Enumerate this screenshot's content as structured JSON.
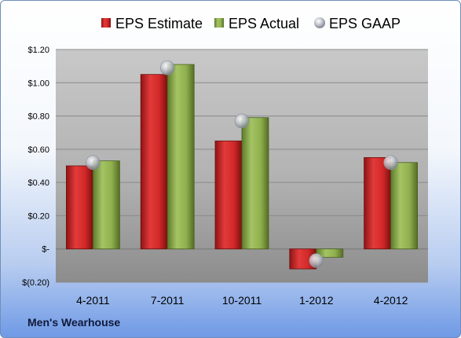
{
  "company": "Men's Wearhouse",
  "colors": {
    "estimate": "#d42a2a",
    "actual": "#8fb04e",
    "gaap": "#b7bcc6"
  },
  "chart_data": {
    "type": "bar",
    "title": "",
    "xlabel": "",
    "ylabel": "",
    "categories": [
      "4-2011",
      "7-2011",
      "10-2011",
      "1-2012",
      "4-2012"
    ],
    "series": [
      {
        "name": "EPS Estimate",
        "kind": "bar",
        "values": [
          0.5,
          1.05,
          0.65,
          -0.12,
          0.55
        ]
      },
      {
        "name": "EPS Actual",
        "kind": "bar",
        "values": [
          0.53,
          1.11,
          0.79,
          -0.05,
          0.52
        ]
      },
      {
        "name": "EPS GAAP",
        "kind": "point",
        "values": [
          0.52,
          1.09,
          0.77,
          -0.07,
          0.52
        ]
      }
    ],
    "ylim": [
      -0.2,
      1.2
    ],
    "yticks": [
      {
        "value": -0.2,
        "label": "$(0.20)"
      },
      {
        "value": 0.0,
        "label": "$-"
      },
      {
        "value": 0.2,
        "label": "$0.20"
      },
      {
        "value": 0.4,
        "label": "$0.40"
      },
      {
        "value": 0.6,
        "label": "$0.60"
      },
      {
        "value": 0.8,
        "label": "$0.80"
      },
      {
        "value": 1.0,
        "label": "$1.00"
      },
      {
        "value": 1.2,
        "label": "$1.20"
      }
    ],
    "grid": true,
    "legend": "top"
  }
}
